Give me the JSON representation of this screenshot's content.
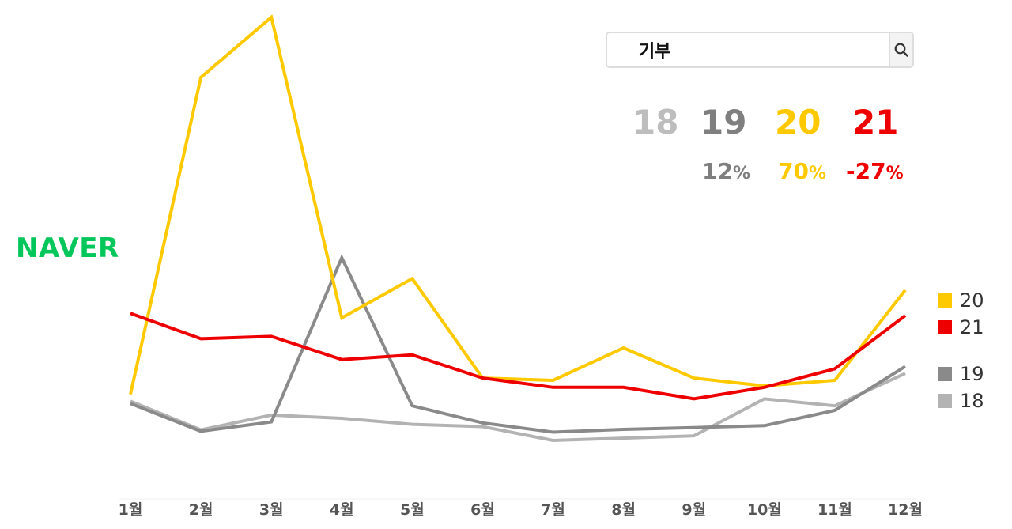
{
  "search": {
    "query": "기부"
  },
  "brand": {
    "text": "NAVER",
    "color": "#03c75a"
  },
  "summary": {
    "years": [
      {
        "label": "18",
        "color": "#bdbdbd"
      },
      {
        "label": "19",
        "color": "#7f7f7f"
      },
      {
        "label": "20",
        "color": "#ffc900"
      },
      {
        "label": "21",
        "color": "#ef0000"
      }
    ],
    "changes": [
      {
        "value": "12",
        "unit": "%",
        "color": "#7f7f7f"
      },
      {
        "value": "70",
        "unit": "%",
        "color": "#ffc900"
      },
      {
        "value": "-27",
        "unit": "%",
        "color": "#ef0000"
      }
    ]
  },
  "legend": [
    {
      "label": "20",
      "color": "#ffc900"
    },
    {
      "label": "21",
      "color": "#ef0000"
    },
    {
      "label": "19",
      "color": "#8a8a8a"
    },
    {
      "label": "18",
      "color": "#b3b3b3"
    }
  ],
  "chart_data": {
    "type": "line",
    "title": "",
    "xlabel": "",
    "ylabel": "",
    "categories": [
      "1월",
      "2월",
      "3월",
      "4월",
      "5월",
      "6월",
      "7월",
      "8월",
      "9월",
      "10월",
      "11월",
      "12월"
    ],
    "ylim": [
      0,
      100
    ],
    "grid": false,
    "legend_position": "right",
    "series": [
      {
        "name": "18",
        "color": "#b3b3b3",
        "values": [
          15.5,
          9.3,
          12.5,
          11.8,
          10.5,
          10.0,
          7.0,
          7.5,
          8.0,
          16.0,
          14.5,
          21.5
        ]
      },
      {
        "name": "19",
        "color": "#8a8a8a",
        "values": [
          15.0,
          9.0,
          11.0,
          46.5,
          14.5,
          10.8,
          8.8,
          9.4,
          9.8,
          10.2,
          13.5,
          23.0
        ]
      },
      {
        "name": "20",
        "color": "#ffc900",
        "values": [
          17.0,
          85.5,
          98.5,
          33.5,
          42.0,
          20.5,
          20.0,
          27.0,
          20.5,
          18.8,
          20.0,
          39.5
        ]
      },
      {
        "name": "21",
        "color": "#ef0000",
        "values": [
          34.5,
          29.0,
          29.5,
          24.5,
          25.5,
          20.5,
          18.5,
          18.5,
          16.0,
          18.5,
          22.5,
          34.0
        ]
      }
    ]
  }
}
